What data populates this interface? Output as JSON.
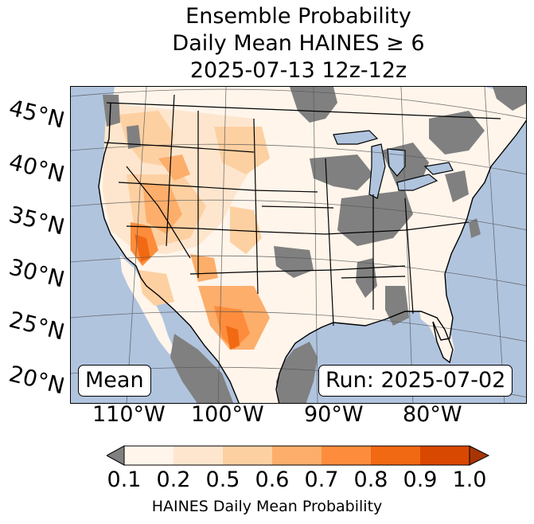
{
  "title": {
    "line1": "Ensemble Probability",
    "line2": "Daily Mean HAINES ≥ 6",
    "line3": "2025-07-13 12z-12z"
  },
  "map": {
    "lat_labels": [
      "45°N",
      "40°N",
      "35°N",
      "30°N",
      "25°N",
      "20°N"
    ],
    "lon_labels": [
      "110°W",
      "100°W",
      "90°W",
      "80°W"
    ],
    "mean_label": "Mean",
    "run_label": "Run: 2025-07-02",
    "colors": {
      "ocean": "#b0c4de",
      "lake": "#b0c4de",
      "below": "#808080",
      "land_base": "#fff5eb"
    }
  },
  "colorbar": {
    "ticks": [
      "0.1",
      "0.2",
      "0.5",
      "0.6",
      "0.7",
      "0.8",
      "0.9",
      "1.0"
    ],
    "colors": [
      "#fff5eb",
      "#fee6ce",
      "#fdd0a2",
      "#fdae6b",
      "#fd8d3c",
      "#f16913",
      "#d94801"
    ],
    "under_color": "#808080",
    "over_color": "#a63603",
    "label": "HAINES Daily Mean Probability"
  }
}
